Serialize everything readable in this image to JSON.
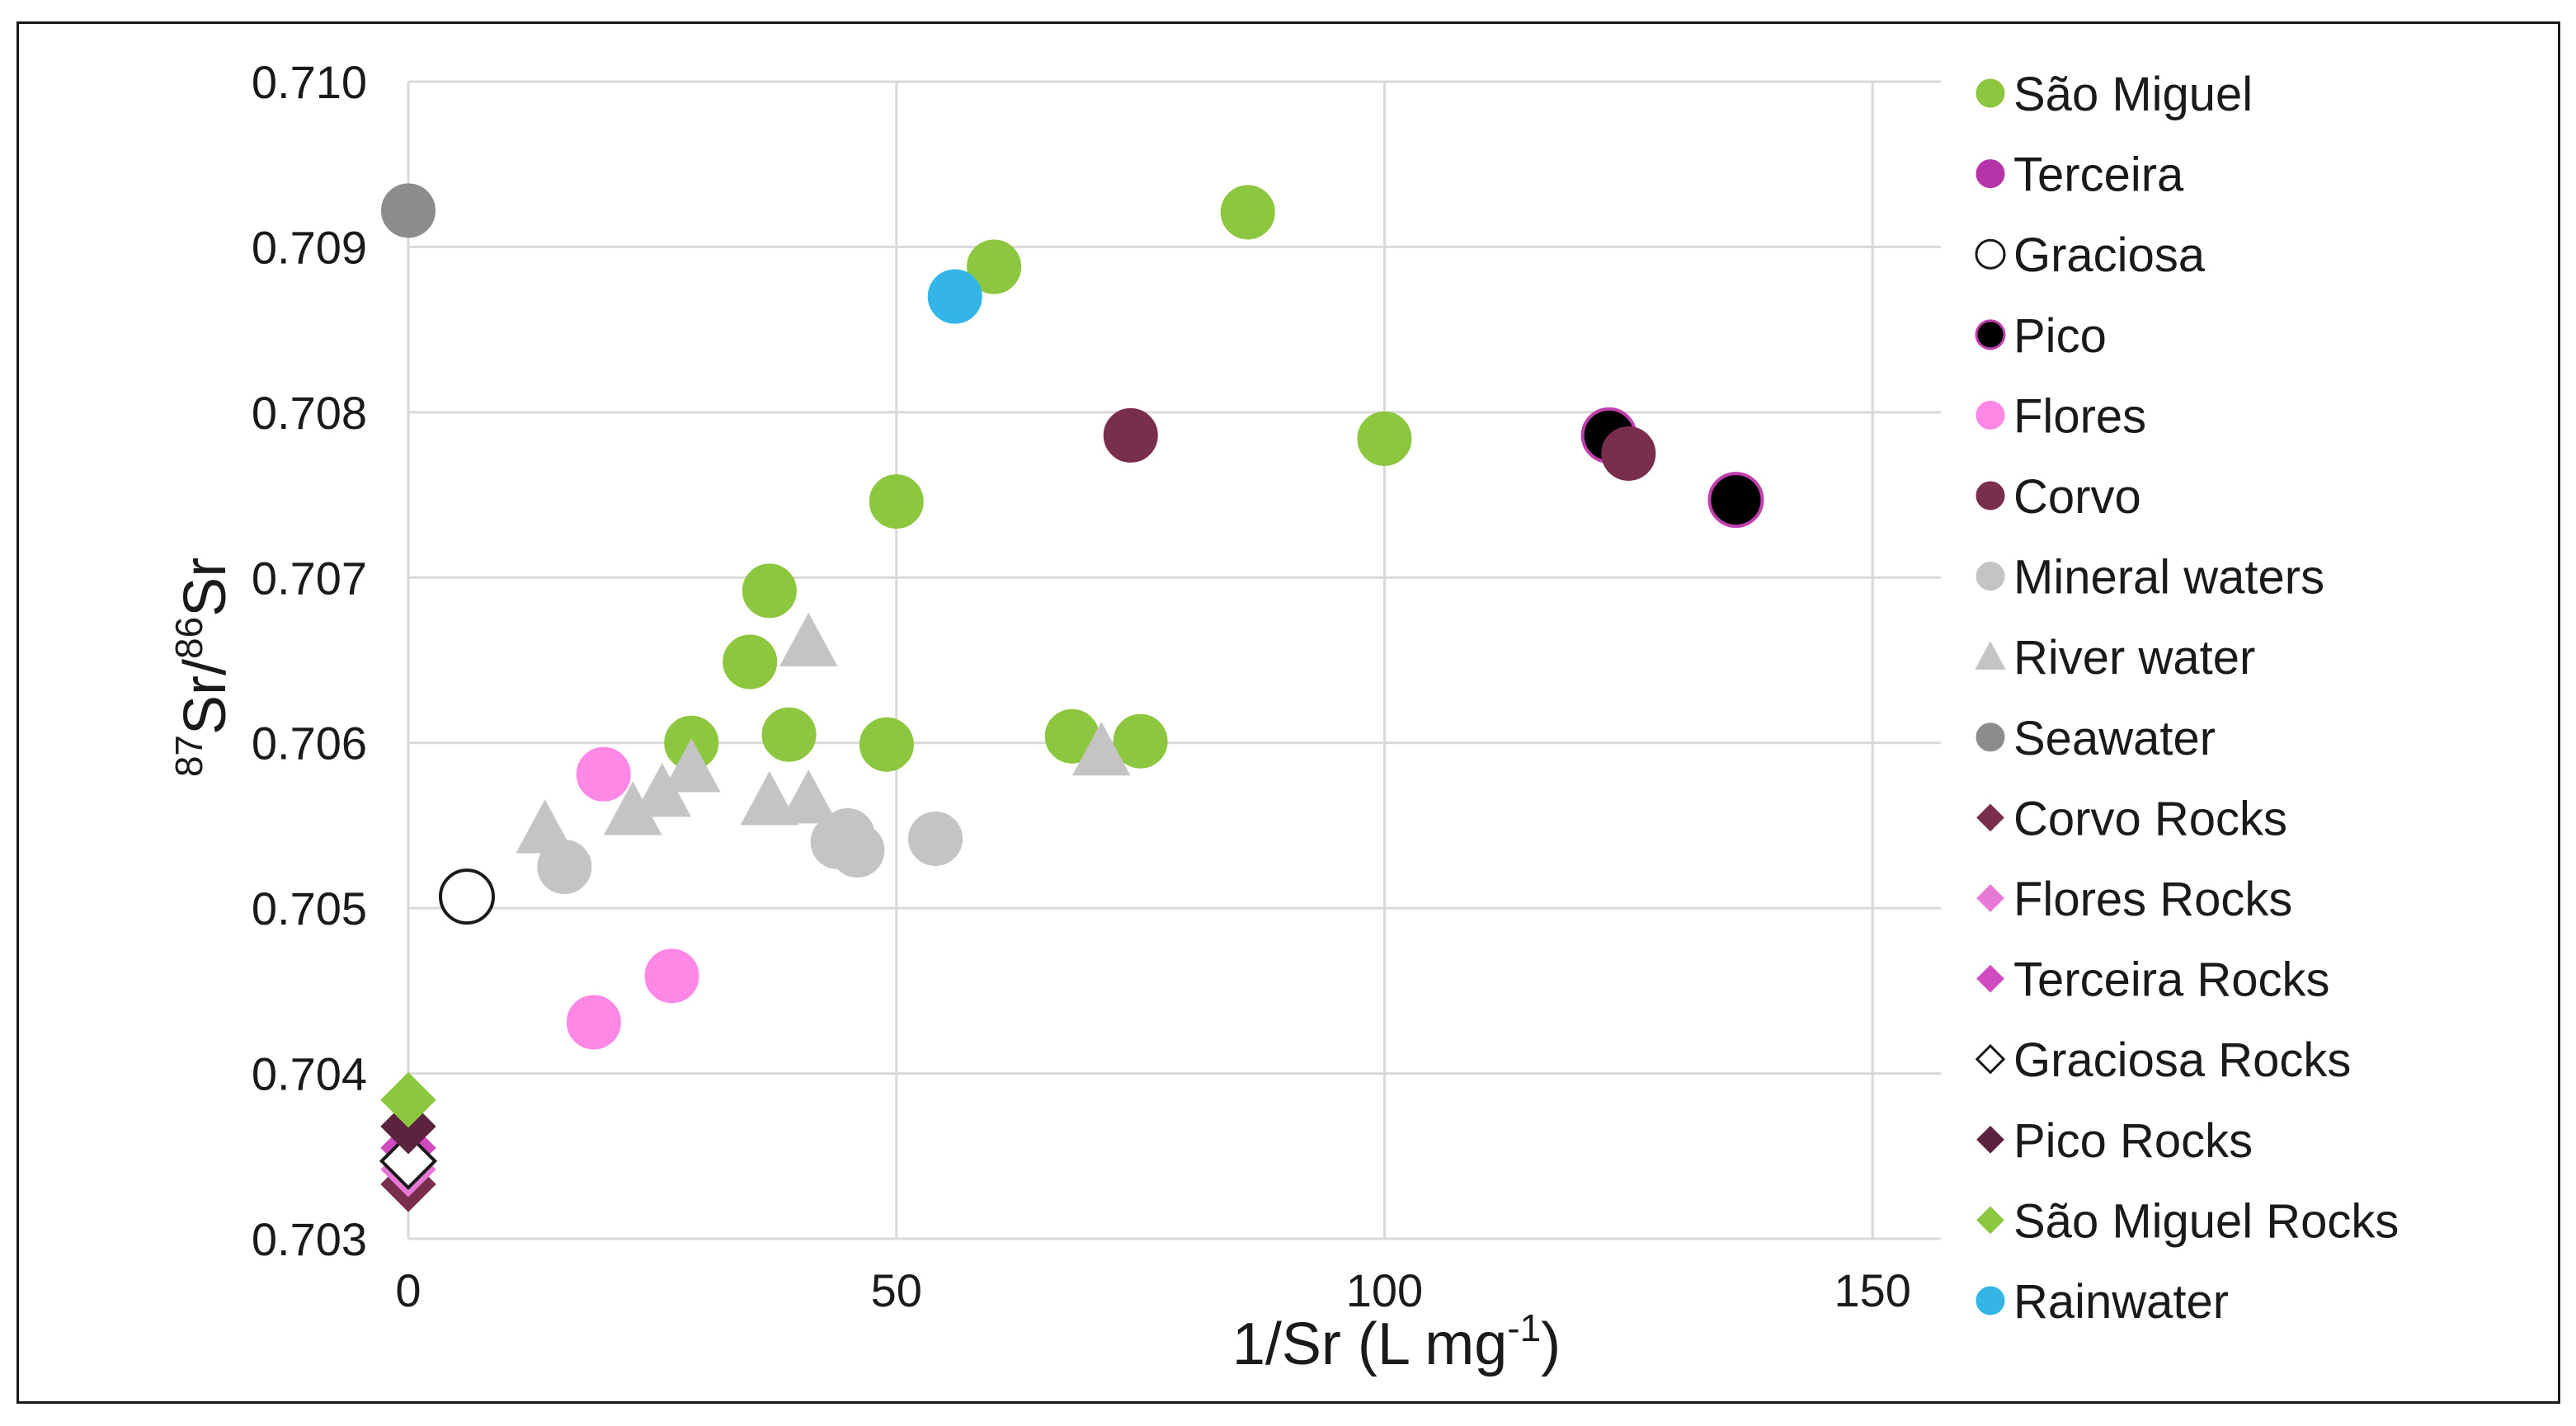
{
  "chart_data": {
    "type": "scatter",
    "xlabel": "1/Sr (L mg",
    "xlabel_sup": "-1",
    "xlabel_suffix": ")",
    "ylabel_sup1": "87",
    "ylabel_main1": "Sr/",
    "ylabel_sup2": "86",
    "ylabel_main2": "Sr",
    "xlim": [
      0,
      157
    ],
    "ylim": [
      0.703,
      0.71
    ],
    "x_ticks": [
      "0",
      "50",
      "100",
      "150"
    ],
    "x_tick_values": [
      0,
      50,
      100,
      150
    ],
    "y_ticks": [
      "0.703",
      "0.704",
      "0.705",
      "0.706",
      "0.707",
      "0.708",
      "0.709",
      "0.710"
    ],
    "y_tick_values": [
      0.703,
      0.704,
      0.705,
      0.706,
      0.707,
      0.708,
      0.709,
      0.71
    ],
    "grid": true,
    "legend_position": "right",
    "series": [
      {
        "name": "São Miguel",
        "marker": "circle",
        "fill": "#8dc63f",
        "stroke": "#8dc63f",
        "points": [
          [
            29,
            0.706
          ],
          [
            35,
            0.70649
          ],
          [
            37,
            0.70692
          ],
          [
            39,
            0.70605
          ],
          [
            49,
            0.70599
          ],
          [
            50,
            0.70746
          ],
          [
            60,
            0.70888
          ],
          [
            68,
            0.70604
          ],
          [
            75,
            0.70601
          ],
          [
            86,
            0.70921
          ],
          [
            100,
            0.70784
          ]
        ]
      },
      {
        "name": "Terceira",
        "marker": "circle",
        "fill": "#b535a8",
        "stroke": "#b535a8",
        "points": []
      },
      {
        "name": "Graciosa",
        "marker": "circle",
        "fill": "#ffffff",
        "stroke": "#1a1a1a",
        "points": [
          [
            6,
            0.70507
          ]
        ]
      },
      {
        "name": "Pico",
        "marker": "circle",
        "fill": "#000000",
        "stroke": "#c040b0",
        "points": [
          [
            123,
            0.70786
          ],
          [
            136,
            0.70747
          ]
        ]
      },
      {
        "name": "Flores",
        "marker": "circle",
        "fill": "#ff88e6",
        "stroke": "#ff88e6",
        "points": [
          [
            19,
            0.70431
          ],
          [
            20,
            0.70581
          ],
          [
            27,
            0.70459
          ]
        ]
      },
      {
        "name": "Corvo",
        "marker": "circle",
        "fill": "#7a2e4d",
        "stroke": "#7a2e4d",
        "points": [
          [
            74,
            0.70786
          ],
          [
            125,
            0.70775
          ]
        ]
      },
      {
        "name": "Mineral waters",
        "marker": "circle",
        "fill": "#c4c4c4",
        "stroke": "#c4c4c4",
        "points": [
          [
            16,
            0.70525
          ],
          [
            44,
            0.7054
          ],
          [
            45,
            0.70544
          ],
          [
            46,
            0.70535
          ],
          [
            54,
            0.70542
          ]
        ]
      },
      {
        "name": "River water",
        "marker": "triangle",
        "fill": "#c4c4c4",
        "stroke": "#c4c4c4",
        "points": [
          [
            14,
            0.70548
          ],
          [
            23,
            0.70559
          ],
          [
            26,
            0.7057
          ],
          [
            29,
            0.70585
          ],
          [
            37,
            0.70565
          ],
          [
            41,
            0.70566
          ],
          [
            41,
            0.70661
          ],
          [
            71,
            0.70595
          ]
        ]
      },
      {
        "name": "Seawater",
        "marker": "circle",
        "fill": "#8c8c8c",
        "stroke": "#8c8c8c",
        "points": [
          [
            0,
            0.70922
          ]
        ]
      },
      {
        "name": "Corvo Rocks",
        "marker": "diamond",
        "fill": "#7a2e4d",
        "stroke": "#7a2e4d",
        "points": [
          [
            0,
            0.70333
          ]
        ]
      },
      {
        "name": "Flores Rocks",
        "marker": "diamond",
        "fill": "#e878d6",
        "stroke": "#e878d6",
        "points": [
          [
            0,
            0.70342
          ]
        ]
      },
      {
        "name": "Terceira Rocks",
        "marker": "diamond",
        "fill": "#d04bbf",
        "stroke": "#d04bbf",
        "points": [
          [
            0,
            0.70355
          ]
        ]
      },
      {
        "name": "Graciosa Rocks",
        "marker": "diamond",
        "fill": "#ffffff",
        "stroke": "#1a1a1a",
        "points": [
          [
            0,
            0.70347
          ]
        ]
      },
      {
        "name": "Pico Rocks",
        "marker": "diamond",
        "fill": "#5c2340",
        "stroke": "#5c2340",
        "points": [
          [
            0,
            0.70368
          ]
        ]
      },
      {
        "name": "São Miguel Rocks",
        "marker": "diamond",
        "fill": "#8dc63f",
        "stroke": "#8dc63f",
        "points": [
          [
            0,
            0.70384
          ]
        ]
      },
      {
        "name": "Rainwater",
        "marker": "circle",
        "fill": "#33b5e8",
        "stroke": "#33b5e8",
        "points": [
          [
            56,
            0.7087
          ]
        ]
      }
    ]
  }
}
